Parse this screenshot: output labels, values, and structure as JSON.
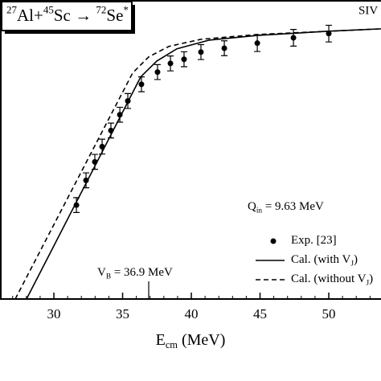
{
  "chart_data": {
    "type": "line",
    "title": [
      {
        "sup": "27"
      },
      "Al+",
      {
        "sup": "45"
      },
      "Sc → ",
      {
        "sup": "72"
      },
      "Se",
      {
        "sup": "*"
      }
    ],
    "corner_label": "SIV",
    "xlabel": [
      "E",
      {
        "sub": "cm"
      },
      " (MeV)"
    ],
    "annotations": [
      {
        "text": [
          "Q",
          {
            "sub": "in"
          },
          " = 9.63 MeV"
        ]
      },
      {
        "text": [
          "V",
          {
            "sub": "B"
          },
          " = 36.9 MeV"
        ],
        "x": 36.9
      }
    ],
    "xlim": [
      26.08,
      53.8
    ],
    "xticks": [
      30,
      35,
      40,
      45,
      50
    ],
    "ylim": [
      0,
      100
    ],
    "series": [
      {
        "name": [
          "Exp. [23]"
        ],
        "type": "scatter",
        "color": "#000000",
        "x": [
          31.64,
          32.34,
          32.98,
          33.51,
          34.15,
          34.8,
          35.38,
          36.37,
          37.54,
          38.48,
          39.47,
          40.7,
          42.4,
          44.8,
          47.43,
          50.0
        ],
        "values": [
          31.5,
          39.8,
          46.0,
          51.1,
          56.5,
          61.8,
          66.4,
          72.0,
          76.1,
          79.0,
          80.4,
          82.8,
          84.1,
          85.8,
          87.6,
          89.0
        ],
        "errors": [
          2.5,
          2.5,
          2.5,
          2.5,
          2.5,
          2.5,
          2.5,
          2.5,
          2.5,
          2.5,
          2.5,
          2.5,
          2.5,
          2.8,
          2.8,
          2.8
        ]
      },
      {
        "name": [
          "Cal. (with V",
          {
            "sub": "J"
          },
          ")"
        ],
        "type": "line",
        "dashed": false,
        "color": "#000000",
        "x": [
          28.01,
          36.32,
          37.49,
          38.95,
          41.29,
          44.8,
          50.0,
          53.8
        ],
        "values": [
          0,
          74.5,
          79.8,
          83.9,
          86.8,
          88.4,
          89.8,
          90.6
        ]
      },
      {
        "name": [
          "Cal. (without V",
          {
            "sub": "J"
          },
          ")"
        ],
        "type": "line",
        "dashed": true,
        "color": "#000000",
        "x": [
          27.19,
          35.73,
          36.9,
          38.36,
          40.7,
          44.8,
          50.0,
          53.8
        ],
        "values": [
          0,
          75.8,
          81.2,
          84.7,
          87.1,
          88.7,
          89.8,
          90.6
        ]
      }
    ]
  }
}
